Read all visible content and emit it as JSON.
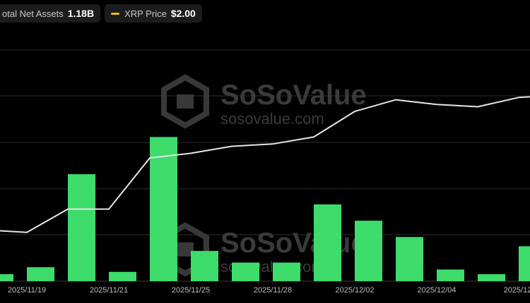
{
  "legend": {
    "assets_label": "otal Net Assets",
    "assets_value": "1.18B",
    "price_label": "XRP Price",
    "price_value": "$2.00",
    "price_color": "#f0b90b"
  },
  "watermark": {
    "brand": "SoSoValue",
    "url": "sosovalue.com"
  },
  "colors": {
    "bar": "#3ddc6b",
    "line": "#e6e6e6",
    "grid": "#2e2e2e",
    "background": "#000000"
  },
  "chart_data": {
    "type": "bar",
    "x_tick_labels": [
      "2025/11/19",
      "2025/11/21",
      "2025/11/25",
      "2025/11/28",
      "2025/12/02",
      "2025/12/04",
      "2025/12/"
    ],
    "bar_series": {
      "values": [
        3,
        6,
        46,
        4,
        62,
        13,
        8,
        8,
        33,
        26,
        19,
        5,
        3,
        15
      ]
    },
    "line_series": {
      "values": [
        22,
        21,
        31,
        31,
        53,
        55,
        58,
        59,
        62,
        73,
        78,
        76,
        75,
        79,
        80
      ]
    },
    "grid": true
  }
}
